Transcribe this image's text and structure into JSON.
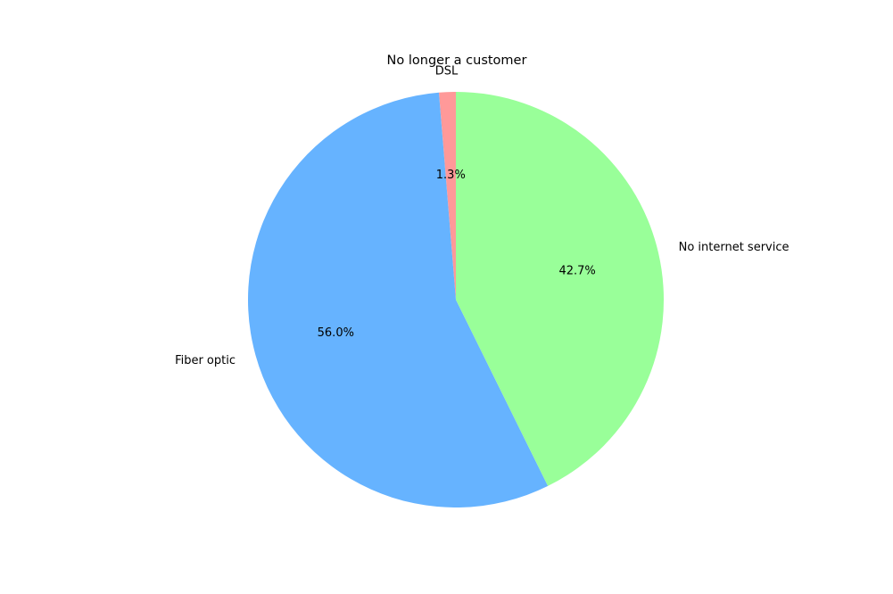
{
  "chart_data": {
    "type": "pie",
    "title": "No longer a customer",
    "start_angle_deg": 90,
    "direction": "counterclockwise",
    "slices": [
      {
        "label": "DSL",
        "value": 1.3,
        "pct_label": "1.3%",
        "color": "#ff9999"
      },
      {
        "label": "Fiber optic",
        "value": 56.0,
        "pct_label": "56.0%",
        "color": "#66b3ff"
      },
      {
        "label": "No internet service",
        "value": 42.7,
        "pct_label": "42.7%",
        "color": "#99ff99"
      }
    ],
    "legend": "none"
  }
}
